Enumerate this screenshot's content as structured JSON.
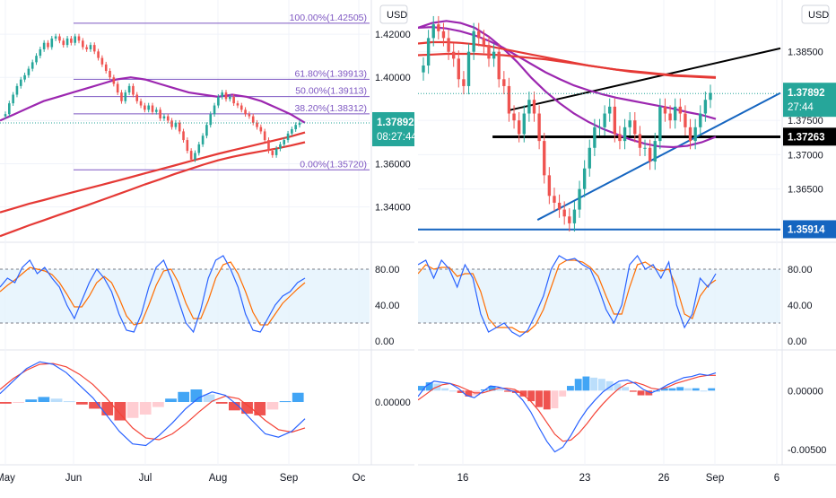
{
  "chart_data": [
    {
      "type": "candlestick",
      "panel": "left",
      "currency": "USD",
      "x_tick_labels": [
        "May",
        "Jun",
        "Jul",
        "Aug",
        "Sep",
        "Oc"
      ],
      "price_axis": {
        "tick_labels": [
          "1.42000",
          "1.40000",
          "1.38000",
          "1.36000",
          "1.34000"
        ],
        "ticks": [
          1.42,
          1.4,
          1.38,
          1.36,
          1.34
        ],
        "ylim": [
          1.3245,
          1.4325
        ]
      },
      "last_price": {
        "value": 1.37892,
        "label": "1.37892",
        "countdown": "08:27:44",
        "color": "#26a69a"
      },
      "fibonacci_levels": [
        {
          "label": "100.00%(1.42505)",
          "value": 1.42505
        },
        {
          "label": "61.80%(1.39913)",
          "value": 1.39913
        },
        {
          "label": "50.00%(1.39113)",
          "value": 1.39113
        },
        {
          "label": "38.20%(1.38312)",
          "value": 1.38312
        },
        {
          "label": "0.00%(1.35720)",
          "value": 1.3572
        }
      ],
      "candles_close": [
        1.383,
        1.388,
        1.392,
        1.396,
        1.399,
        1.401,
        1.404,
        1.407,
        1.41,
        1.413,
        1.416,
        1.414,
        1.418,
        1.419,
        1.417,
        1.415,
        1.418,
        1.416,
        1.419,
        1.417,
        1.414,
        1.413,
        1.415,
        1.412,
        1.409,
        1.406,
        1.403,
        1.4,
        1.397,
        1.393,
        1.389,
        1.393,
        1.396,
        1.392,
        1.389,
        1.387,
        1.385,
        1.387,
        1.384,
        1.385,
        1.381,
        1.382,
        1.38,
        1.377,
        1.379,
        1.375,
        1.371,
        1.366,
        1.362,
        1.365,
        1.369,
        1.373,
        1.378,
        1.383,
        1.387,
        1.391,
        1.393,
        1.39,
        1.391,
        1.388,
        1.387,
        1.385,
        1.383,
        1.382,
        1.379,
        1.377,
        1.375,
        1.371,
        1.366,
        1.364,
        1.367,
        1.369,
        1.371,
        1.374,
        1.376,
        1.378,
        1.379
      ],
      "moving_averages": [
        {
          "color": "#9c27b0",
          "values": [
            1.38,
            1.383,
            1.386,
            1.389,
            1.391,
            1.393,
            1.395,
            1.397,
            1.399,
            1.4,
            1.399,
            1.397,
            1.395,
            1.393,
            1.392,
            1.391,
            1.392,
            1.391,
            1.389,
            1.386,
            1.383,
            1.379
          ]
        },
        {
          "color": "#e53935",
          "values": [
            1.3375,
            1.3395,
            1.3415,
            1.3432,
            1.345,
            1.3468,
            1.3485,
            1.3502,
            1.352,
            1.3538,
            1.3556,
            1.3574,
            1.3592,
            1.361,
            1.3628,
            1.3646,
            1.3662,
            1.3678,
            1.3694,
            1.371,
            1.3726,
            1.3745
          ]
        },
        {
          "color": "#e53935",
          "values": [
            1.3265,
            1.329,
            1.3315,
            1.3338,
            1.3362,
            1.3385,
            1.3408,
            1.3432,
            1.3456,
            1.348,
            1.3505,
            1.3528,
            1.3552,
            1.3574,
            1.3596,
            1.3616,
            1.3632,
            1.3646,
            1.3658,
            1.367,
            1.3684,
            1.37
          ]
        }
      ],
      "stochastic": {
        "tick_labels": [
          "80.00",
          "40.00",
          "0.00"
        ],
        "ticks": [
          80,
          40,
          0
        ],
        "ylim": [
          -8,
          108
        ],
        "band": [
          20,
          80
        ],
        "k": [
          60,
          70,
          65,
          82,
          90,
          75,
          82,
          70,
          60,
          40,
          25,
          45,
          65,
          80,
          70,
          55,
          30,
          12,
          10,
          30,
          60,
          82,
          90,
          70,
          45,
          20,
          10,
          35,
          70,
          90,
          95,
          80,
          60,
          30,
          12,
          10,
          25,
          40,
          50,
          55,
          65,
          70
        ],
        "d": [
          55,
          62,
          68,
          75,
          82,
          80,
          78,
          74,
          65,
          52,
          38,
          38,
          50,
          65,
          72,
          65,
          48,
          28,
          18,
          20,
          40,
          62,
          78,
          80,
          65,
          42,
          25,
          25,
          45,
          70,
          85,
          88,
          75,
          55,
          32,
          18,
          18,
          30,
          42,
          50,
          58,
          65
        ],
        "k_color": "#2962ff",
        "d_color": "#ff6d00"
      },
      "macd": {
        "tick_labels": [
          "0.00000"
        ],
        "ticks": [
          0
        ],
        "ylim": [
          -0.0075,
          0.006
        ],
        "macd": [
          0.001,
          0.0025,
          0.004,
          0.0048,
          0.0045,
          0.0035,
          0.002,
          0.0005,
          -0.0015,
          -0.0035,
          -0.005,
          -0.0052,
          -0.004,
          -0.0025,
          -0.0008,
          0.0005,
          0.0012,
          0.0008,
          -0.0005,
          -0.0022,
          -0.0038,
          -0.0042,
          -0.0035,
          -0.002
        ],
        "signal": [
          0.0015,
          0.0028,
          0.0038,
          0.0045,
          0.0046,
          0.0042,
          0.0033,
          0.0021,
          0.0005,
          -0.0013,
          -0.0031,
          -0.0043,
          -0.0045,
          -0.0038,
          -0.0026,
          -0.0012,
          0.0001,
          0.0007,
          0.0004,
          -0.0008,
          -0.0022,
          -0.0033,
          -0.0036,
          -0.0031
        ],
        "histogram": [
          -0.0002,
          -0.0001,
          0.0003,
          0.0006,
          0.0004,
          0.0001,
          -0.0003,
          -0.0008,
          -0.0016,
          -0.0022,
          -0.0019,
          -0.0015,
          -0.0006,
          0.0004,
          0.0012,
          0.0015,
          0.0009,
          -0.0002,
          -0.001,
          -0.0014,
          -0.0016,
          -0.0009,
          0.0001,
          0.0011
        ],
        "macd_color": "#2962ff",
        "signal_color": "#f44336"
      }
    },
    {
      "type": "candlestick",
      "panel": "right",
      "currency": "USD",
      "x_tick_labels": [
        "16",
        "23",
        "26",
        "Sep",
        "6"
      ],
      "price_axis": {
        "tick_labels": [
          "1.38500",
          "1.37500",
          "1.37000",
          "1.36500"
        ],
        "ticks": [
          1.385,
          1.375,
          1.37,
          1.365
        ],
        "ylim": [
          1.3575,
          1.3915
        ]
      },
      "last_price": {
        "value": 1.37892,
        "label": "1.37892",
        "countdown": "27:44",
        "color": "#26a69a"
      },
      "price_labels": [
        {
          "label": "1.37263",
          "value": 1.37263,
          "color": "#000000"
        },
        {
          "label": "1.35914",
          "value": 1.35914,
          "color": "#1565c0"
        }
      ],
      "trendlines": [
        {
          "color": "#000000",
          "points": [
            [
              25,
              1.3765
            ],
            [
              83,
              1.3855
            ]
          ]
        },
        {
          "color": "#000000",
          "points": [
            [
              20,
              1.3726
            ],
            [
              83,
              1.3726
            ]
          ]
        },
        {
          "color": "#1565c0",
          "points": [
            [
              33,
              1.3605
            ],
            [
              83,
              1.379
            ]
          ]
        },
        {
          "color": "#1565c0",
          "points": [
            [
              0,
              1.3591
            ],
            [
              83,
              1.3591
            ]
          ]
        }
      ],
      "candles_close": [
        1.383,
        1.387,
        1.389,
        1.388,
        1.387,
        1.385,
        1.384,
        1.381,
        1.38,
        1.385,
        1.388,
        1.387,
        1.386,
        1.384,
        1.385,
        1.381,
        1.38,
        1.376,
        1.375,
        1.373,
        1.376,
        1.378,
        1.376,
        1.372,
        1.367,
        1.364,
        1.363,
        1.362,
        1.361,
        1.36,
        1.362,
        1.365,
        1.368,
        1.371,
        1.374,
        1.374,
        1.376,
        1.377,
        1.373,
        1.372,
        1.374,
        1.375,
        1.373,
        1.371,
        1.371,
        1.369,
        1.372,
        1.377,
        1.376,
        1.375,
        1.377,
        1.376,
        1.374,
        1.372,
        1.374,
        1.376,
        1.378,
        1.379
      ],
      "moving_averages": [
        {
          "color": "#9c27b0",
          "values": [
            1.3885,
            1.3892,
            1.3895,
            1.3892,
            1.3885,
            1.3872,
            1.3855,
            1.3835,
            1.3812,
            1.3792,
            1.3775,
            1.376,
            1.3748,
            1.3738,
            1.373,
            1.3722,
            1.3716,
            1.3712,
            1.3711,
            1.3713,
            1.3718,
            1.3726
          ]
        },
        {
          "color": "#9c27b0",
          "values": [
            1.3885,
            1.3886,
            1.3884,
            1.388,
            1.3874,
            1.3866,
            1.3856,
            1.3844,
            1.3832,
            1.382,
            1.381,
            1.3801,
            1.3794,
            1.3788,
            1.3783,
            1.3779,
            1.3775,
            1.3771,
            1.3767,
            1.3762,
            1.3758,
            1.3752
          ]
        },
        {
          "color": "#e53935",
          "values": [
            1.3862,
            1.3864,
            1.3864,
            1.3863,
            1.3861,
            1.3858,
            1.3854,
            1.385,
            1.3846,
            1.3842,
            1.3838,
            1.3834,
            1.383,
            1.3827,
            1.3824,
            1.3821,
            1.3819,
            1.3817,
            1.3815,
            1.3814,
            1.3813,
            1.3812
          ]
        },
        {
          "color": "#e53935",
          "values": [
            1.3845,
            1.3846,
            1.3847,
            1.3847,
            1.3847,
            1.3846,
            1.3845,
            1.3843,
            1.3841,
            1.3839,
            1.3836,
            1.3833,
            1.383,
            1.3827,
            1.3824,
            1.3822,
            1.382,
            1.3818,
            1.3816,
            1.3815,
            1.3814,
            1.3813
          ]
        }
      ],
      "stochastic": {
        "tick_labels": [
          "80.00",
          "40.00",
          "0.00"
        ],
        "ticks": [
          80,
          40,
          0
        ],
        "ylim": [
          -8,
          108
        ],
        "band": [
          20,
          80
        ],
        "k": [
          85,
          90,
          70,
          90,
          80,
          60,
          85,
          70,
          30,
          10,
          15,
          20,
          10,
          5,
          12,
          30,
          50,
          80,
          95,
          90,
          92,
          85,
          80,
          60,
          35,
          20,
          40,
          85,
          95,
          80,
          85,
          70,
          88,
          40,
          15,
          30,
          70,
          60,
          75
        ],
        "d": [
          75,
          85,
          80,
          82,
          82,
          72,
          75,
          75,
          55,
          25,
          15,
          15,
          15,
          10,
          10,
          18,
          35,
          60,
          85,
          90,
          90,
          88,
          82,
          72,
          50,
          30,
          30,
          60,
          85,
          88,
          82,
          78,
          80,
          60,
          30,
          25,
          50,
          62,
          68
        ],
        "k_color": "#2962ff",
        "d_color": "#ff6d00"
      },
      "macd": {
        "tick_labels": [
          "0.00000",
          "-0.00500"
        ],
        "ticks": [
          0,
          -0.005
        ],
        "ylim": [
          -0.0063,
          0.0033
        ],
        "macd": [
          -0.0005,
          0.0004,
          0.0008,
          0.0007,
          0.0006,
          0.0002,
          -0.0004,
          -0.0006,
          -0.0001,
          0.0004,
          0.0003,
          0.0001,
          -0.0001,
          -0.0008,
          -0.0018,
          -0.0031,
          -0.0043,
          -0.0052,
          -0.0048,
          -0.0038,
          -0.0026,
          -0.0016,
          -0.0008,
          -0.0001,
          0.0004,
          0.0008,
          0.0009,
          0.0006,
          0.0001,
          -0.0002,
          0.0001,
          0.0005,
          0.0008,
          0.0011,
          0.0012,
          0.0014,
          0.0013,
          0.0015
        ],
        "signal": [
          -0.0008,
          -0.0003,
          0.0002,
          0.0005,
          0.0006,
          0.0004,
          0.0001,
          -0.0002,
          -0.0002,
          0.0,
          0.0002,
          0.0002,
          0.0001,
          -0.0003,
          -0.0009,
          -0.0017,
          -0.0027,
          -0.0037,
          -0.0043,
          -0.0042,
          -0.0036,
          -0.0028,
          -0.0019,
          -0.0011,
          -0.0004,
          0.0002,
          0.0006,
          0.0007,
          0.0005,
          0.0002,
          0.0001,
          0.0003,
          0.0006,
          0.0008,
          0.001,
          0.0012,
          0.0013,
          0.0013
        ],
        "histogram": [
          0.0004,
          0.0007,
          0.0006,
          0.0002,
          0.0,
          -0.0002,
          -0.0005,
          -0.0004,
          0.0001,
          0.0004,
          0.0001,
          -0.0001,
          -0.0002,
          -0.0005,
          -0.0009,
          -0.0014,
          -0.0016,
          -0.0015,
          -0.0005,
          0.0004,
          0.001,
          0.0012,
          0.0011,
          0.001,
          0.0008,
          0.0006,
          0.0003,
          -0.0001,
          -0.0004,
          -0.0004,
          0.0,
          0.0002,
          0.0002,
          0.0003,
          0.0002,
          0.0002,
          0.0,
          0.0002
        ],
        "macd_color": "#2962ff",
        "signal_color": "#f44336"
      }
    }
  ]
}
